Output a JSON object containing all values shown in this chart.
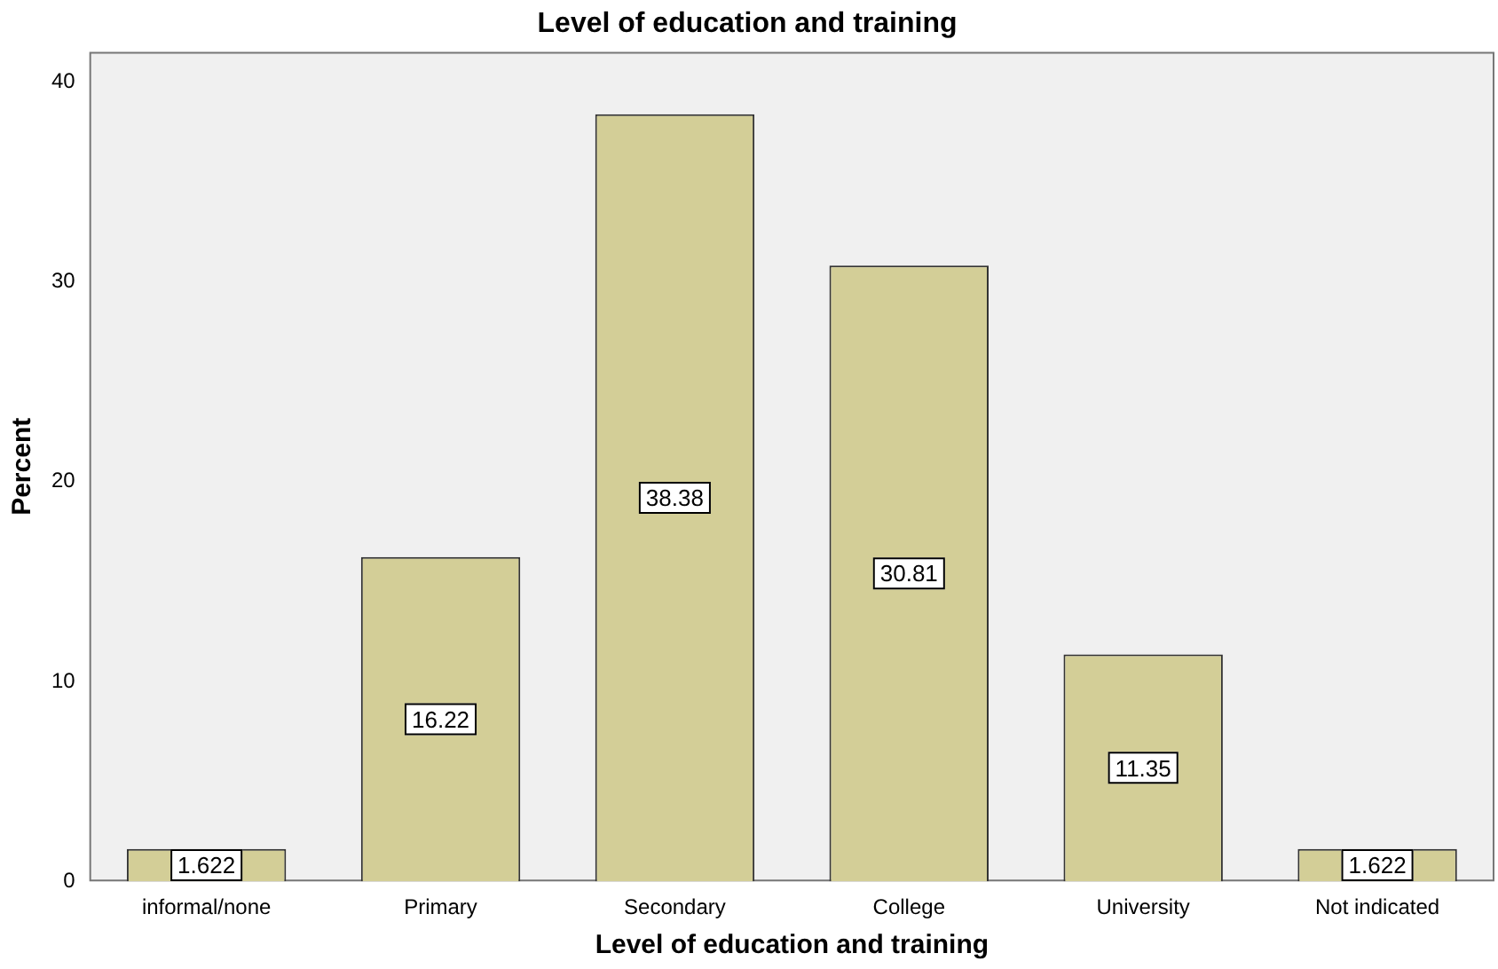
{
  "chart_data": {
    "type": "bar",
    "title": "Level of education and training",
    "xlabel": "Level of education and training",
    "ylabel": "Percent",
    "categories": [
      "informal/none",
      "Primary",
      "Secondary",
      "College",
      "University",
      "Not indicated"
    ],
    "values": [
      1.622,
      16.22,
      38.38,
      30.81,
      11.35,
      1.622
    ],
    "color": "#d3ce97",
    "ylim": [
      0,
      41.5
    ],
    "yticks": [
      0,
      10,
      20,
      30,
      40
    ],
    "grid": false,
    "legend": false,
    "data_labels": true
  }
}
